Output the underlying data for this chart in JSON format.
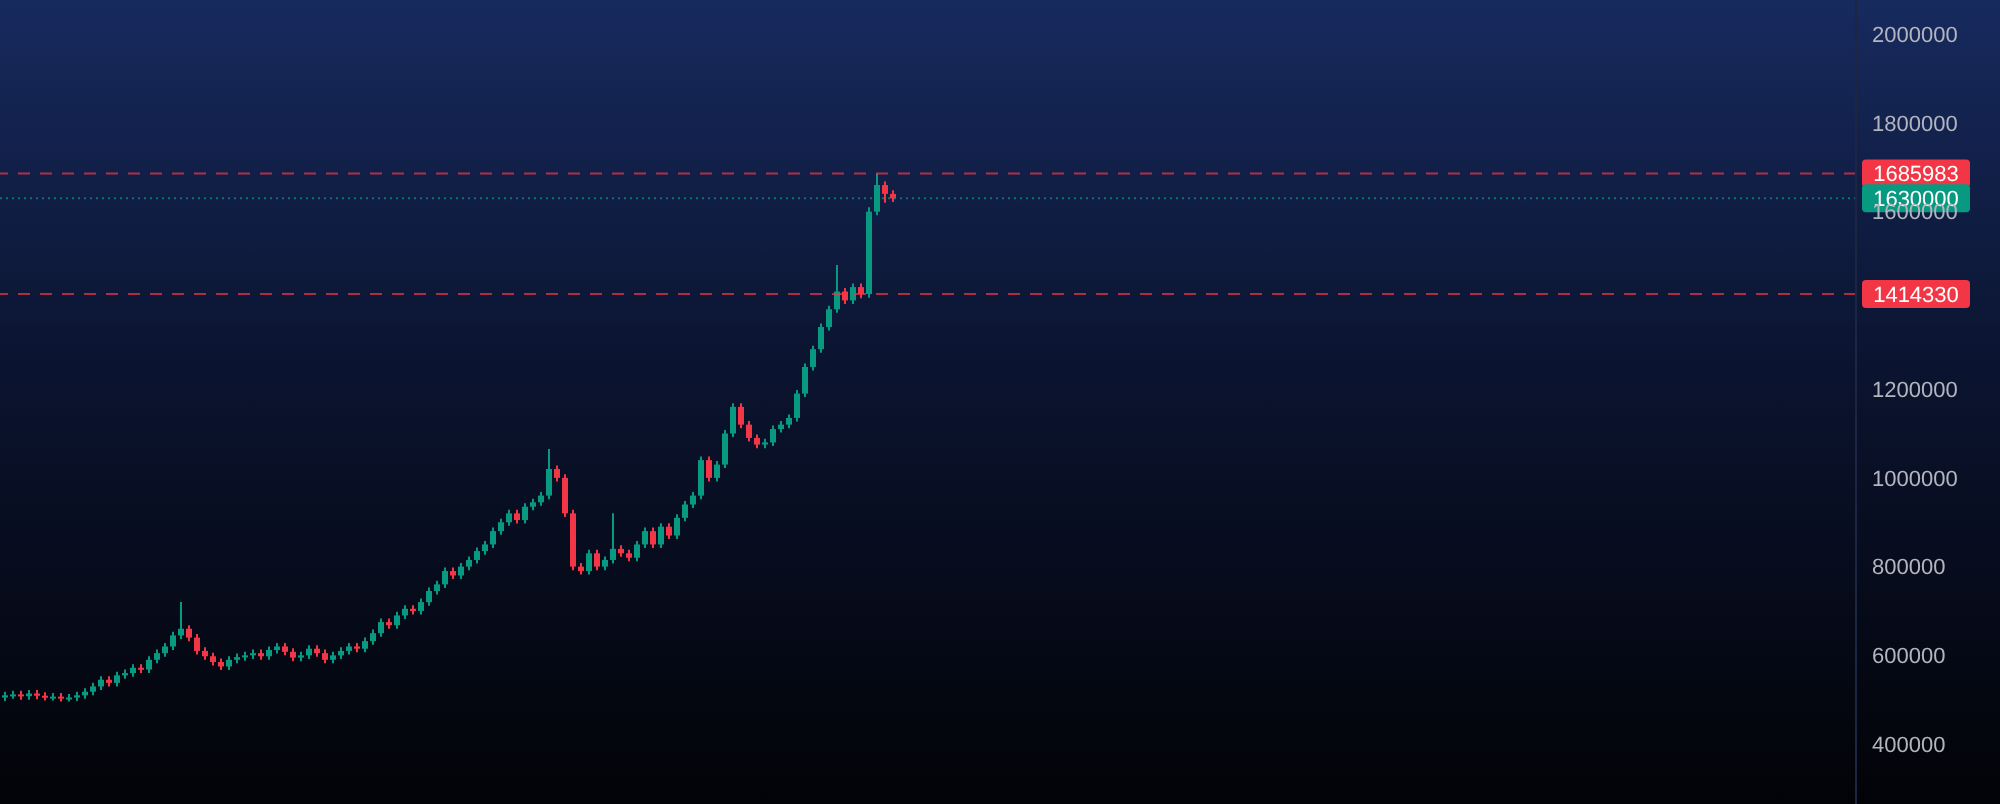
{
  "chart_data": {
    "type": "candlestick",
    "categories": [
      null,
      null,
      null,
      null,
      null,
      null,
      null,
      null,
      null,
      null,
      null,
      null,
      null,
      null,
      null,
      null,
      null,
      null,
      null,
      null,
      null,
      null,
      null,
      null,
      null,
      null,
      null,
      null,
      null,
      null,
      null,
      null,
      null,
      null,
      null,
      null,
      null,
      null,
      null,
      null,
      null,
      null,
      null,
      null,
      null,
      null,
      null,
      null,
      null,
      null,
      null,
      null,
      null,
      null,
      null,
      null,
      null,
      null,
      null,
      null,
      null,
      null,
      null,
      null,
      null,
      null,
      null,
      null,
      null,
      null,
      null,
      null,
      null,
      null,
      null,
      null,
      null,
      null,
      null,
      null,
      null,
      null,
      null,
      null,
      null,
      null,
      null,
      null,
      null,
      null,
      null,
      null,
      null,
      null,
      null,
      null,
      null,
      null,
      null,
      null,
      null,
      null,
      null,
      null,
      null,
      null,
      null,
      null,
      null,
      null,
      null,
      null,
      null,
      null,
      null,
      null,
      null,
      null,
      null,
      null,
      null,
      null,
      null,
      null,
      null,
      null,
      null,
      null,
      null,
      null,
      null,
      null,
      null,
      null,
      null,
      null,
      null,
      null,
      null,
      null,
      null,
      null,
      null,
      null,
      null,
      null,
      null,
      null,
      null,
      null,
      null,
      null,
      null,
      null,
      null,
      null,
      null,
      null,
      null,
      null,
      null,
      null,
      null,
      null,
      null,
      null,
      null,
      null,
      null,
      null,
      null,
      null,
      null,
      null,
      null,
      null,
      null,
      null,
      null,
      null,
      null,
      null,
      null,
      null,
      null,
      null,
      null,
      null,
      null,
      null,
      null,
      null,
      null,
      null,
      null,
      null,
      null,
      null,
      null,
      null,
      null,
      null,
      null,
      null,
      null,
      null,
      null,
      null,
      null,
      null,
      null,
      null,
      null,
      null,
      null,
      null,
      null,
      null,
      null,
      null,
      null,
      null,
      null,
      null,
      null,
      null,
      null,
      null,
      null,
      null,
      null,
      null
    ],
    "ohlc": [
      [
        505000,
        518000,
        497000,
        510000
      ],
      [
        510000,
        520000,
        502000,
        512000
      ],
      [
        512000,
        520000,
        500000,
        508000
      ],
      [
        508000,
        522000,
        500000,
        514000
      ],
      [
        514000,
        522000,
        501000,
        509000
      ],
      [
        509000,
        517000,
        498000,
        506000
      ],
      [
        506000,
        515000,
        498000,
        507000
      ],
      [
        507000,
        515000,
        496000,
        504000
      ],
      [
        504000,
        513000,
        496000,
        505000
      ],
      [
        505000,
        518000,
        497000,
        510000
      ],
      [
        510000,
        526000,
        502000,
        518000
      ],
      [
        518000,
        538000,
        510000,
        530000
      ],
      [
        530000,
        553000,
        522000,
        545000
      ],
      [
        545000,
        553000,
        530000,
        538000
      ],
      [
        538000,
        563000,
        530000,
        555000
      ],
      [
        555000,
        568000,
        547000,
        560000
      ],
      [
        560000,
        580000,
        552000,
        572000
      ],
      [
        572000,
        580000,
        560000,
        568000
      ],
      [
        568000,
        598000,
        560000,
        590000
      ],
      [
        590000,
        613000,
        582000,
        605000
      ],
      [
        605000,
        628000,
        597000,
        620000
      ],
      [
        620000,
        653000,
        612000,
        645000
      ],
      [
        645000,
        720000,
        637000,
        660000
      ],
      [
        660000,
        668000,
        632000,
        640000
      ],
      [
        640000,
        648000,
        602000,
        610000
      ],
      [
        610000,
        618000,
        590000,
        598000
      ],
      [
        598000,
        606000,
        577000,
        585000
      ],
      [
        585000,
        593000,
        567000,
        575000
      ],
      [
        575000,
        598000,
        567000,
        590000
      ],
      [
        590000,
        604000,
        582000,
        596000
      ],
      [
        596000,
        608000,
        588000,
        600000
      ],
      [
        600000,
        613000,
        592000,
        605000
      ],
      [
        605000,
        613000,
        590000,
        598000
      ],
      [
        598000,
        620000,
        590000,
        612000
      ],
      [
        612000,
        628000,
        604000,
        620000
      ],
      [
        620000,
        628000,
        600000,
        608000
      ],
      [
        608000,
        616000,
        587000,
        595000
      ],
      [
        595000,
        608000,
        587000,
        600000
      ],
      [
        600000,
        623000,
        592000,
        615000
      ],
      [
        615000,
        623000,
        597000,
        605000
      ],
      [
        605000,
        613000,
        582000,
        590000
      ],
      [
        590000,
        608000,
        582000,
        600000
      ],
      [
        600000,
        618000,
        592000,
        610000
      ],
      [
        610000,
        628000,
        602000,
        620000
      ],
      [
        620000,
        628000,
        607000,
        615000
      ],
      [
        615000,
        640000,
        607000,
        632000
      ],
      [
        632000,
        658000,
        624000,
        650000
      ],
      [
        650000,
        683000,
        642000,
        675000
      ],
      [
        675000,
        683000,
        660000,
        668000
      ],
      [
        668000,
        698000,
        660000,
        690000
      ],
      [
        690000,
        713000,
        682000,
        705000
      ],
      [
        705000,
        713000,
        692000,
        700000
      ],
      [
        700000,
        728000,
        692000,
        720000
      ],
      [
        720000,
        753000,
        712000,
        745000
      ],
      [
        745000,
        768000,
        737000,
        760000
      ],
      [
        760000,
        798000,
        752000,
        790000
      ],
      [
        790000,
        798000,
        772000,
        780000
      ],
      [
        780000,
        808000,
        772000,
        800000
      ],
      [
        800000,
        823000,
        792000,
        815000
      ],
      [
        815000,
        843000,
        807000,
        835000
      ],
      [
        835000,
        858000,
        827000,
        850000
      ],
      [
        850000,
        888000,
        842000,
        880000
      ],
      [
        880000,
        908000,
        872000,
        900000
      ],
      [
        900000,
        928000,
        892000,
        920000
      ],
      [
        920000,
        928000,
        897000,
        905000
      ],
      [
        905000,
        943000,
        897000,
        935000
      ],
      [
        935000,
        953000,
        927000,
        945000
      ],
      [
        945000,
        968000,
        937000,
        960000
      ],
      [
        960000,
        1065000,
        952000,
        1020000
      ],
      [
        1020000,
        1028000,
        992000,
        1000000
      ],
      [
        1000000,
        1008000,
        912000,
        920000
      ],
      [
        920000,
        928000,
        792000,
        800000
      ],
      [
        800000,
        808000,
        782000,
        790000
      ],
      [
        790000,
        838000,
        782000,
        830000
      ],
      [
        830000,
        838000,
        792000,
        800000
      ],
      [
        800000,
        823000,
        792000,
        815000
      ],
      [
        815000,
        920000,
        807000,
        840000
      ],
      [
        840000,
        848000,
        822000,
        830000
      ],
      [
        830000,
        838000,
        812000,
        820000
      ],
      [
        820000,
        858000,
        812000,
        850000
      ],
      [
        850000,
        888000,
        842000,
        880000
      ],
      [
        880000,
        888000,
        842000,
        850000
      ],
      [
        850000,
        898000,
        842000,
        890000
      ],
      [
        890000,
        898000,
        862000,
        870000
      ],
      [
        870000,
        918000,
        862000,
        910000
      ],
      [
        910000,
        948000,
        902000,
        940000
      ],
      [
        940000,
        968000,
        932000,
        960000
      ],
      [
        960000,
        1048000,
        952000,
        1040000
      ],
      [
        1040000,
        1048000,
        992000,
        1000000
      ],
      [
        1000000,
        1038000,
        992000,
        1030000
      ],
      [
        1030000,
        1108000,
        1022000,
        1100000
      ],
      [
        1100000,
        1168000,
        1092000,
        1160000
      ],
      [
        1160000,
        1168000,
        1112000,
        1120000
      ],
      [
        1120000,
        1128000,
        1082000,
        1090000
      ],
      [
        1090000,
        1098000,
        1067000,
        1075000
      ],
      [
        1075000,
        1088000,
        1067000,
        1080000
      ],
      [
        1080000,
        1118000,
        1072000,
        1110000
      ],
      [
        1110000,
        1128000,
        1102000,
        1120000
      ],
      [
        1120000,
        1143000,
        1112000,
        1135000
      ],
      [
        1135000,
        1198000,
        1127000,
        1190000
      ],
      [
        1190000,
        1258000,
        1182000,
        1250000
      ],
      [
        1250000,
        1298000,
        1242000,
        1290000
      ],
      [
        1290000,
        1348000,
        1282000,
        1340000
      ],
      [
        1340000,
        1388000,
        1332000,
        1380000
      ],
      [
        1380000,
        1480000,
        1372000,
        1420000
      ],
      [
        1420000,
        1428000,
        1392000,
        1400000
      ],
      [
        1400000,
        1438000,
        1392000,
        1430000
      ],
      [
        1430000,
        1438000,
        1405000,
        1414330
      ],
      [
        1414330,
        1610000,
        1406000,
        1600000
      ],
      [
        1600000,
        1685983,
        1592000,
        1660000
      ],
      [
        1660000,
        1668000,
        1620000,
        1640000
      ],
      [
        1640000,
        1648000,
        1622000,
        1630000
      ],
      null,
      null,
      null,
      null,
      null,
      null,
      null,
      null,
      null,
      null,
      null,
      null,
      null,
      null,
      null,
      null,
      null,
      null,
      null,
      null,
      null,
      null,
      null,
      null,
      null,
      null,
      null,
      null,
      null,
      null,
      null,
      null,
      null,
      null,
      null,
      null,
      null,
      null,
      null,
      null,
      null,
      null,
      null,
      null,
      null,
      null,
      null,
      null,
      null,
      null,
      null,
      null,
      null,
      null,
      null,
      null,
      null,
      null,
      null,
      null,
      null,
      null,
      null,
      null,
      null,
      null,
      null,
      null,
      null,
      null,
      null,
      null,
      null,
      null,
      null,
      null,
      null,
      null,
      null,
      null,
      null,
      null,
      null,
      null,
      null,
      null,
      null,
      null,
      null,
      null,
      null,
      null,
      null,
      null,
      null,
      null,
      null,
      null,
      null,
      null,
      null,
      null,
      null,
      null,
      null,
      null,
      null,
      null,
      null,
      null,
      null,
      null,
      null,
      null,
      null,
      null,
      null,
      null,
      null,
      null
    ],
    "colors": [
      "#089981",
      "#089981",
      "#f23645",
      "#089981",
      "#f23645",
      "#f23645",
      "#089981",
      "#f23645",
      "#089981",
      "#089981",
      "#089981",
      "#089981",
      "#089981",
      "#f23645",
      "#089981",
      "#089981",
      "#089981",
      "#f23645",
      "#089981",
      "#089981",
      "#089981",
      "#089981",
      "#089981",
      "#f23645",
      "#f23645",
      "#f23645",
      "#f23645",
      "#f23645",
      "#089981",
      "#089981",
      "#089981",
      "#089981",
      "#f23645",
      "#089981",
      "#089981",
      "#f23645",
      "#f23645",
      "#089981",
      "#089981",
      "#f23645",
      "#f23645",
      "#089981",
      "#089981",
      "#089981",
      "#f23645",
      "#089981",
      "#089981",
      "#089981",
      "#f23645",
      "#089981",
      "#089981",
      "#f23645",
      "#089981",
      "#089981",
      "#089981",
      "#089981",
      "#f23645",
      "#089981",
      "#089981",
      "#089981",
      "#089981",
      "#089981",
      "#089981",
      "#089981",
      "#f23645",
      "#089981",
      "#089981",
      "#089981",
      "#089981",
      "#f23645",
      "#f23645",
      "#f23645",
      "#f23645",
      "#089981",
      "#f23645",
      "#089981",
      "#089981",
      "#f23645",
      "#f23645",
      "#089981",
      "#089981",
      "#f23645",
      "#089981",
      "#f23645",
      "#089981",
      "#089981",
      "#089981",
      "#089981",
      "#f23645",
      "#089981",
      "#089981",
      "#089981",
      "#f23645",
      "#f23645",
      "#f23645",
      "#089981",
      "#089981",
      "#089981",
      "#089981",
      "#089981",
      "#089981",
      "#089981",
      "#089981",
      "#089981",
      "#089981",
      "#f23645",
      "#089981",
      "#f23645",
      "#089981",
      "#089981",
      "#f23645",
      "#f23645",
      null,
      null,
      null,
      null,
      null,
      null,
      null,
      null,
      null,
      null,
      null,
      null,
      null,
      null,
      null,
      null,
      null,
      null,
      null,
      null,
      null,
      null,
      null,
      null,
      null,
      null,
      null,
      null,
      null,
      null,
      null,
      null,
      null,
      null,
      null,
      null,
      null,
      null,
      null,
      null,
      null,
      null,
      null,
      null,
      null,
      null,
      null,
      null,
      null,
      null,
      null,
      null,
      null,
      null,
      null,
      null,
      null,
      null,
      null,
      null,
      null,
      null,
      null,
      null,
      null,
      null,
      null,
      null,
      null,
      null,
      null,
      null,
      null,
      null,
      null,
      null,
      null,
      null,
      null,
      null,
      null,
      null,
      null,
      null,
      null,
      null,
      null,
      null,
      null,
      null,
      null,
      null,
      null,
      null,
      null,
      null,
      null,
      null,
      null,
      null,
      null,
      null,
      null,
      null,
      null,
      null,
      null,
      null,
      null,
      null,
      null,
      null,
      null,
      null,
      null,
      null,
      null,
      null,
      null,
      null
    ],
    "ylim": [
      265000,
      2077000
    ],
    "yticks": [
      400000,
      600000,
      800000,
      1000000,
      1200000,
      1600000,
      1800000,
      2000000
    ],
    "tick_labels": "y",
    "ref_lines": [
      {
        "axis": "y",
        "value": 1685983,
        "label": "1685983",
        "color": "#f23645",
        "line_style": "dashed"
      },
      {
        "axis": "y",
        "value": 1630000,
        "label": "1630000",
        "color": "#089981",
        "line_style": "dotted"
      },
      {
        "axis": "y",
        "value": 1414330,
        "label": "1414330",
        "color": "#f23645",
        "line_style": "dashed"
      }
    ]
  }
}
